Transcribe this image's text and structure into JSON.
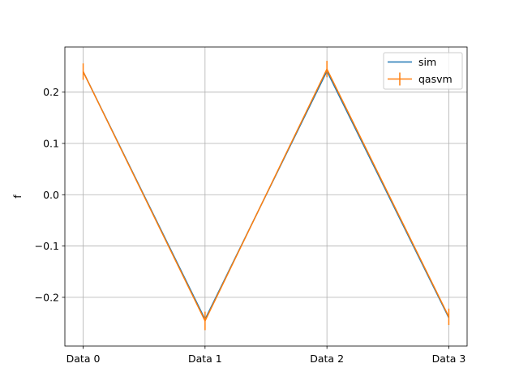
{
  "chart_data": {
    "type": "line",
    "title": "",
    "xlabel": "",
    "ylabel": "f",
    "categories": [
      "Data 0",
      "Data 1",
      "Data 2",
      "Data 3"
    ],
    "ylim": [
      -0.295,
      0.288
    ],
    "yticks": [
      -0.2,
      -0.1,
      0.0,
      0.1,
      0.2
    ],
    "ytick_labels": [
      "−0.2",
      "−0.1",
      "0.0",
      "0.1",
      "0.2"
    ],
    "grid": true,
    "legend_position": "top-right",
    "series": [
      {
        "name": "sim",
        "color": "#1f77b4",
        "values": [
          0.24,
          -0.243,
          0.241,
          -0.24
        ]
      },
      {
        "name": "qasvm",
        "color": "#ff7f0e",
        "values": [
          0.24,
          -0.246,
          0.245,
          -0.238
        ],
        "errors": [
          0.016,
          0.018,
          0.016,
          0.016
        ]
      }
    ]
  }
}
